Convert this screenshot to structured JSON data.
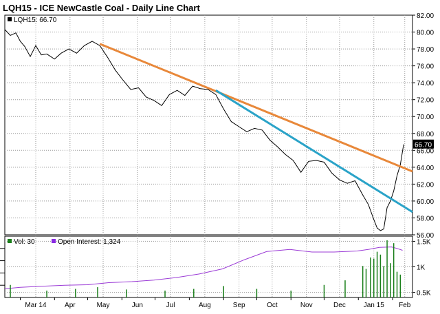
{
  "title": "LQH15 - ICE NewCastle Coal - Daily Line Chart",
  "chart_data": [
    {
      "type": "line",
      "title": "LQH15 - ICE NewCastle Coal - Daily Line Chart",
      "legend": {
        "label": "LQH15: 66.70",
        "placement": "top-left"
      },
      "last_value_label": "66.70",
      "x_tick_labels": [
        "Mar 14",
        "Apr",
        "May",
        "Jun",
        "Jul",
        "Aug",
        "Sep",
        "Oct",
        "Nov",
        "Dec",
        "Jan 15",
        "Feb"
      ],
      "y_tick_labels": [
        "56.00",
        "58.00",
        "60.00",
        "62.00",
        "64.00",
        "66.00",
        "68.00",
        "70.00",
        "72.00",
        "74.00",
        "76.00",
        "78.00",
        "80.00",
        "82.00"
      ],
      "ylim": [
        56,
        82
      ],
      "grid": true,
      "series": [
        {
          "name": "LQH15",
          "color": "#000000",
          "x": [
            "2014-02-15",
            "2014-02-20",
            "2014-02-25",
            "2014-03-01",
            "2014-03-05",
            "2014-03-10",
            "2014-03-15",
            "2014-03-20",
            "2014-03-25",
            "2014-04-01",
            "2014-04-07",
            "2014-04-14",
            "2014-04-21",
            "2014-04-28",
            "2014-05-05",
            "2014-05-12",
            "2014-05-19",
            "2014-05-26",
            "2014-06-02",
            "2014-06-09",
            "2014-06-16",
            "2014-06-23",
            "2014-06-30",
            "2014-07-07",
            "2014-07-14",
            "2014-07-21",
            "2014-07-28",
            "2014-08-04",
            "2014-08-11",
            "2014-08-18",
            "2014-08-25",
            "2014-09-01",
            "2014-09-08",
            "2014-09-15",
            "2014-09-22",
            "2014-09-29",
            "2014-10-06",
            "2014-10-13",
            "2014-10-20",
            "2014-10-27",
            "2014-11-03",
            "2014-11-10",
            "2014-11-17",
            "2014-11-24",
            "2014-12-01",
            "2014-12-08",
            "2014-12-15",
            "2014-12-22",
            "2014-12-29",
            "2015-01-05",
            "2015-01-10",
            "2015-01-15",
            "2015-01-18",
            "2015-01-21",
            "2015-01-24",
            "2015-01-27",
            "2015-01-30",
            "2015-02-02",
            "2015-02-05",
            "2015-02-08",
            "2015-02-11"
          ],
          "y": [
            80.3,
            79.6,
            79.9,
            78.9,
            78.3,
            77.1,
            78.4,
            77.3,
            77.4,
            76.8,
            77.5,
            78.0,
            77.5,
            78.4,
            78.9,
            78.4,
            77.0,
            75.5,
            74.3,
            73.2,
            73.4,
            72.3,
            71.9,
            71.3,
            72.6,
            73.1,
            72.5,
            73.6,
            73.3,
            73.2,
            72.6,
            70.9,
            69.4,
            68.8,
            68.2,
            68.6,
            68.4,
            67.2,
            66.4,
            65.5,
            64.8,
            63.4,
            64.7,
            64.8,
            64.6,
            63.3,
            62.5,
            62.1,
            62.4,
            60.7,
            59.6,
            57.8,
            56.8,
            56.5,
            56.7,
            59.2,
            60.0,
            61.2,
            63.0,
            64.3,
            66.7
          ]
        },
        {
          "name": "",
          "color": "#e8883a",
          "x": [
            "2014-05-12",
            "2015-02-19"
          ],
          "y": [
            78.6,
            63.5
          ]
        },
        {
          "name": "",
          "color": "#2aa3c8",
          "x": [
            "2014-08-25",
            "2015-02-19"
          ],
          "y": [
            73.1,
            58.7
          ]
        }
      ]
    },
    {
      "type": "bar",
      "legend": [
        {
          "label": "Vol: 30",
          "color": "#1a7f1a"
        },
        {
          "label": "Open Interest: 1,324",
          "color": "#8a2be2"
        }
      ],
      "y_tick_labels_left": [
        "",
        "",
        "",
        "",
        ""
      ],
      "y_tick_labels_right": [
        "1.5K",
        "1K",
        "0.5K"
      ],
      "grid": true,
      "series": [
        {
          "name": "Open Interest",
          "type": "line",
          "color": "#9b3bd6",
          "x": [
            "2014-02-15",
            "2014-03-01",
            "2014-03-20",
            "2014-04-10",
            "2014-05-01",
            "2014-05-20",
            "2014-06-10",
            "2014-06-30",
            "2014-07-20",
            "2014-08-10",
            "2014-08-31",
            "2014-09-20",
            "2014-10-10",
            "2014-10-31",
            "2014-11-20",
            "2014-12-10",
            "2014-12-31",
            "2015-01-10",
            "2015-01-20",
            "2015-01-31",
            "2015-02-05",
            "2015-02-10"
          ],
          "y": [
            570,
            600,
            620,
            640,
            650,
            690,
            710,
            740,
            790,
            860,
            960,
            1140,
            1300,
            1340,
            1290,
            1290,
            1310,
            1340,
            1380,
            1390,
            1360,
            1324
          ]
        },
        {
          "name": "Volume",
          "type": "bar",
          "color": "#1a7f1a",
          "x": [
            "2014-02-20",
            "2014-03-25",
            "2014-04-20",
            "2014-05-10",
            "2014-06-05",
            "2014-07-10",
            "2014-08-05",
            "2014-09-01",
            "2014-10-01",
            "2014-11-01",
            "2014-12-01",
            "2014-12-20",
            "2015-01-05",
            "2015-01-08",
            "2015-01-12",
            "2015-01-15",
            "2015-01-18",
            "2015-01-21",
            "2015-01-24",
            "2015-01-27",
            "2015-01-30",
            "2015-02-02",
            "2015-02-05",
            "2015-02-08"
          ],
          "y": [
            0.22,
            0.12,
            0.15,
            0.18,
            0.14,
            0.12,
            0.15,
            0.2,
            0.15,
            0.12,
            0.22,
            0.3,
            0.55,
            0.5,
            0.7,
            0.68,
            0.8,
            0.75,
            0.55,
            1.0,
            0.6,
            0.95,
            0.45,
            0.4
          ]
        }
      ]
    }
  ]
}
